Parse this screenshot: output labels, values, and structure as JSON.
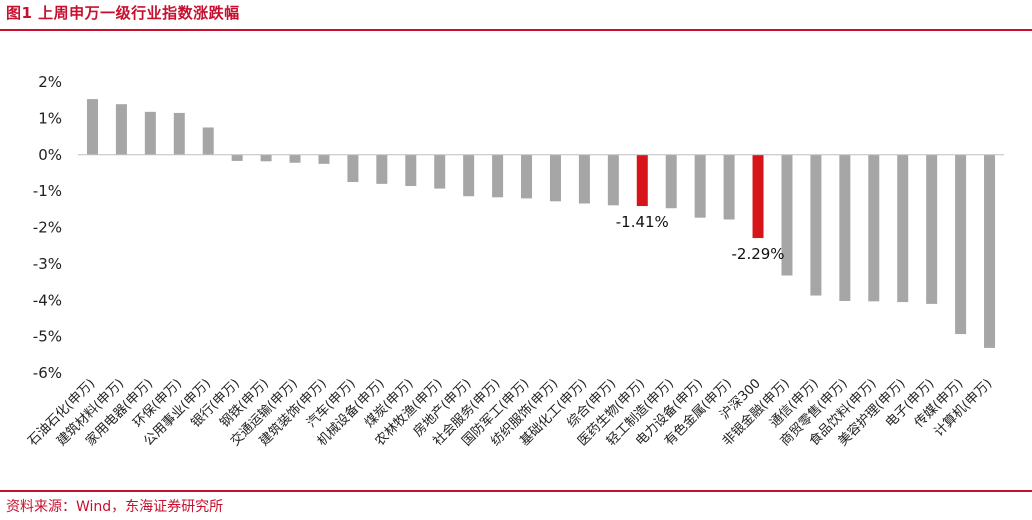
{
  "header": {
    "title": "图1 上周申万一级行业指数涨跌幅"
  },
  "footer": {
    "source": "资料来源：Wind，东海证券研究所"
  },
  "chart_data": {
    "type": "bar",
    "title": "上周申万一级行业指数涨跌幅",
    "xlabel": "",
    "ylabel": "",
    "ylim": [
      -6,
      2
    ],
    "yticks": [
      2,
      1,
      0,
      -1,
      -2,
      -3,
      -4,
      -5,
      -6
    ],
    "ytick_format": "percent",
    "grid": false,
    "legend": "none",
    "colors": {
      "default": "#a6a6a6",
      "highlight": "#d7141a",
      "axis": "#bfbfbf"
    },
    "categories": [
      "石油石化(申万)",
      "建筑材料(申万)",
      "家用电器(申万)",
      "环保(申万)",
      "公用事业(申万)",
      "银行(申万)",
      "钢铁(申万)",
      "交通运输(申万)",
      "建筑装饰(申万)",
      "汽车(申万)",
      "机械设备(申万)",
      "煤炭(申万)",
      "农林牧渔(申万)",
      "房地产(申万)",
      "社会服务(申万)",
      "国防军工(申万)",
      "纺织服饰(申万)",
      "基础化工(申万)",
      "综合(申万)",
      "医药生物(申万)",
      "轻工制造(申万)",
      "电力设备(申万)",
      "有色金属(申万)",
      "沪深300",
      "非银金融(申万)",
      "通信(申万)",
      "商贸零售(申万)",
      "食品饮料(申万)",
      "美容护理(申万)",
      "电子(申万)",
      "传媒(申万)",
      "计算机(申万)"
    ],
    "values": [
      1.53,
      1.39,
      1.18,
      1.15,
      0.75,
      -0.17,
      -0.18,
      -0.22,
      -0.25,
      -0.75,
      -0.8,
      -0.86,
      -0.93,
      -1.14,
      -1.17,
      -1.2,
      -1.28,
      -1.34,
      -1.39,
      -1.41,
      -1.47,
      -1.73,
      -1.78,
      -2.29,
      -3.32,
      -3.87,
      -4.02,
      -4.03,
      -4.05,
      -4.1,
      -4.93,
      -5.31
    ],
    "highlight_indices": [
      19,
      23
    ],
    "data_labels": [
      {
        "index": 19,
        "text": "-1.41%"
      },
      {
        "index": 23,
        "text": "-2.29%"
      }
    ]
  }
}
